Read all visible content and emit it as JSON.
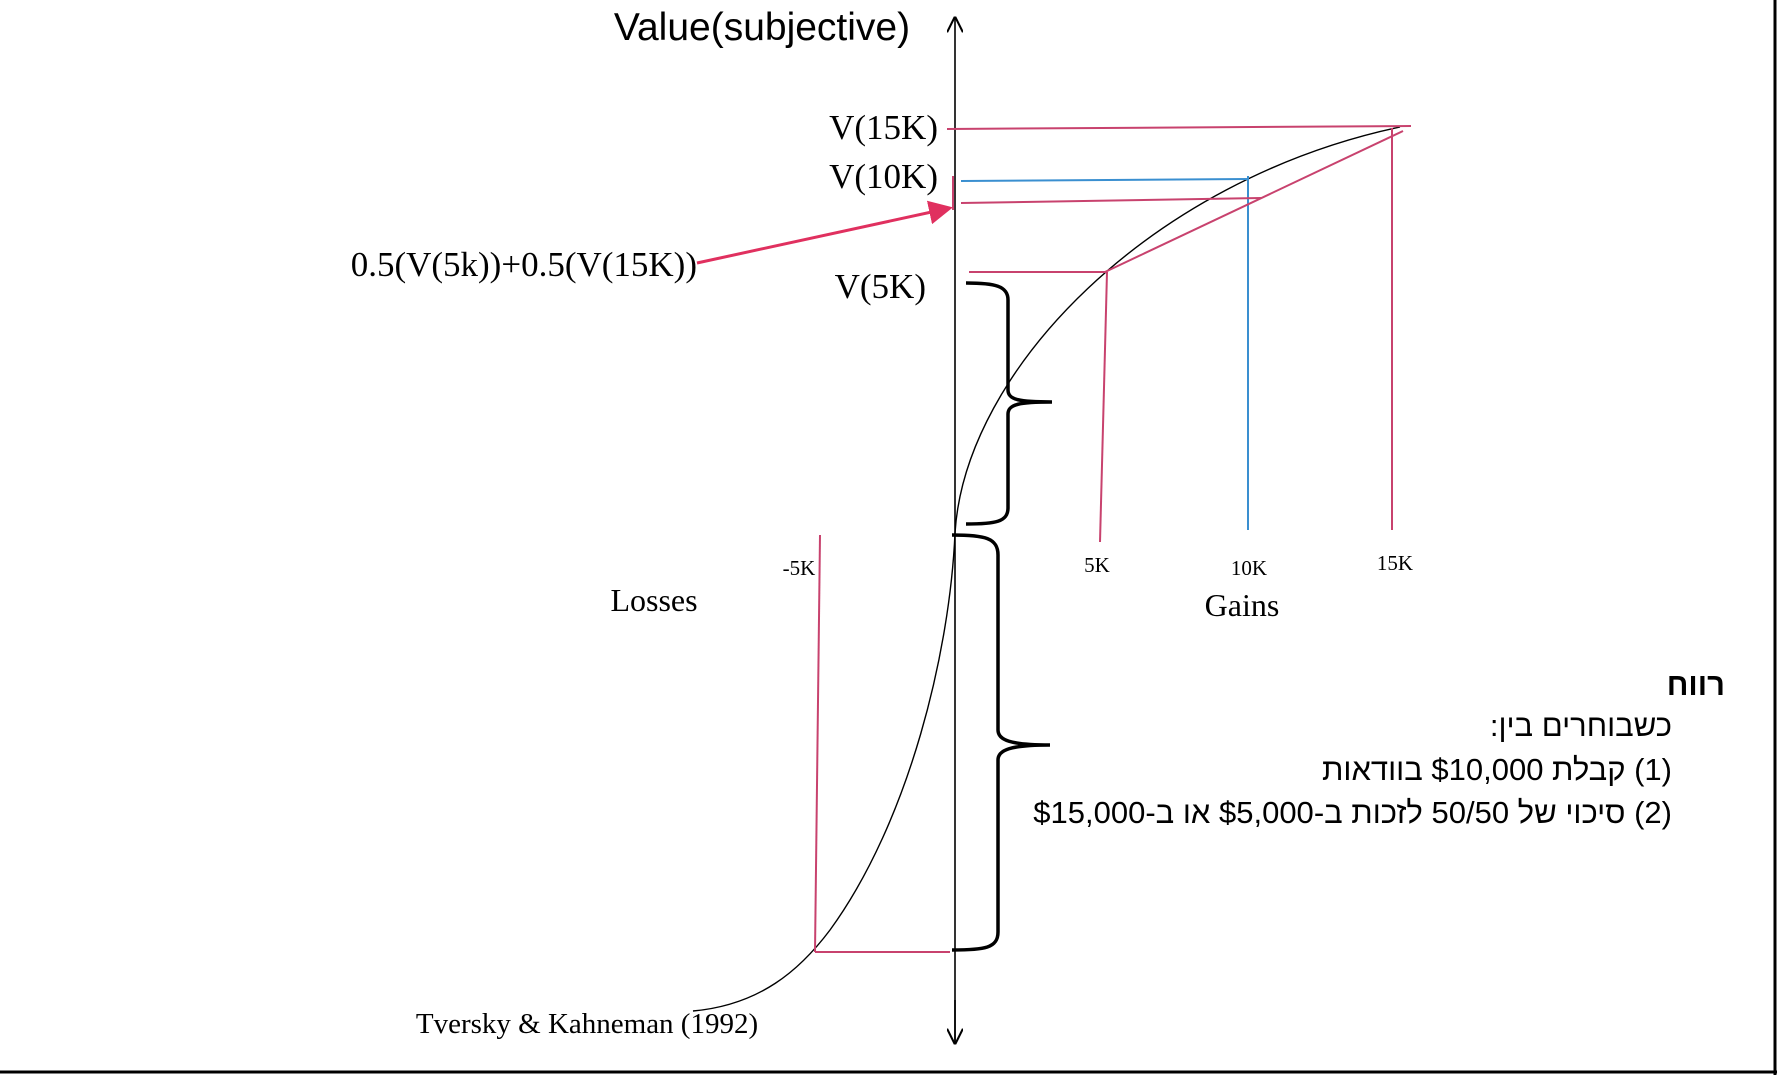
{
  "diagram": {
    "y_axis_label": "Value(subjective)",
    "value_labels": {
      "v15k": "V(15K)",
      "v10k": "V(10K)",
      "v5k": "V(5K)",
      "expected": "0.5(V(5k))+0.5(V(15K))"
    },
    "x_ticks": {
      "neg5k": "-5K",
      "p5k": "5K",
      "p10k": "10K",
      "p15k": "15K"
    },
    "losses_label": "Losses",
    "gains_label": "Gains",
    "citation": "Tversky & Kahneman (1992)",
    "colors": {
      "axis": "#000000",
      "curve": "#000000",
      "guide_pink": "#c8426e",
      "guide_blue": "#3a8fd0",
      "arrow": "#e0305f"
    }
  },
  "text_box": {
    "title": "רווח",
    "intro": "כשבוחרים בין:",
    "option_1": "(1) קבלת $10,000 בוודאות",
    "option_2": "(2) סיכוי של 50/50 לזכות ב-$5,000 או ב-$15,000"
  }
}
